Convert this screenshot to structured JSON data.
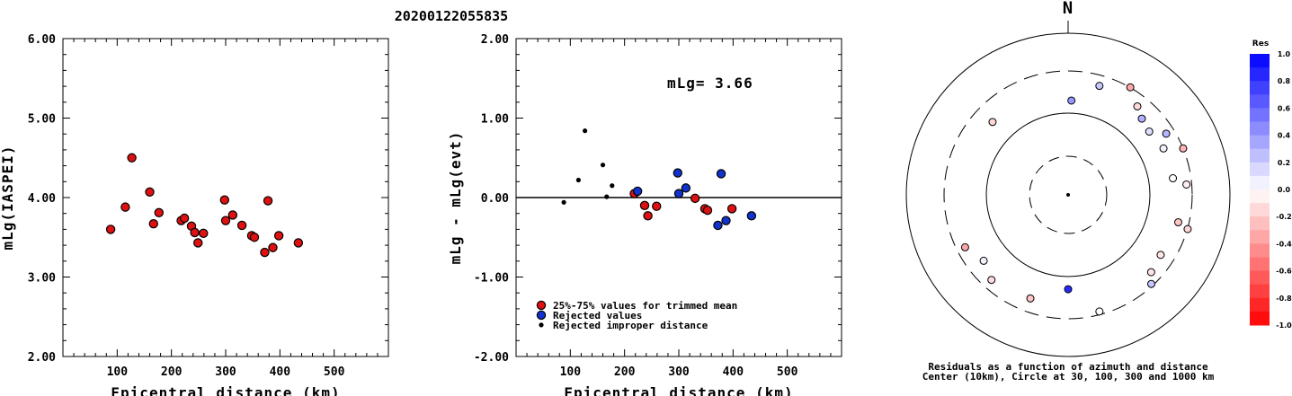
{
  "event_title": "20200122055835",
  "chart_data": [
    {
      "type": "scatter",
      "title": "",
      "xlabel": "Epicentral distance (km)",
      "ylabel": "mLg(IASPEI)",
      "xlim": [
        0,
        600
      ],
      "ylim": [
        2.0,
        6.0
      ],
      "xticks": [
        "100",
        "200",
        "300",
        "400",
        "500"
      ],
      "yticks": [
        "2.00",
        "3.00",
        "4.00",
        "5.00",
        "6.00"
      ],
      "series": [
        {
          "points": [
            [
              88,
              3.6
            ],
            [
              115,
              3.88
            ],
            [
              127,
              4.5
            ],
            [
              160,
              4.07
            ],
            [
              167,
              3.67
            ],
            [
              177,
              3.81
            ],
            [
              218,
              3.71
            ],
            [
              224,
              3.74
            ],
            [
              237,
              3.64
            ],
            [
              243,
              3.56
            ],
            [
              249,
              3.43
            ],
            [
              259,
              3.55
            ],
            [
              298,
              3.97
            ],
            [
              300,
              3.71
            ],
            [
              313,
              3.78
            ],
            [
              330,
              3.65
            ],
            [
              348,
              3.52
            ],
            [
              353,
              3.5
            ],
            [
              372,
              3.31
            ],
            [
              378,
              3.96
            ],
            [
              387,
              3.37
            ],
            [
              398,
              3.52
            ],
            [
              434,
              3.43
            ]
          ],
          "color": "#dd1111"
        }
      ]
    },
    {
      "type": "scatter",
      "title": "",
      "xlabel": "Epicentral distance (km)",
      "ylabel": "mLg - mLg(evt)",
      "xlim": [
        0,
        600
      ],
      "ylim": [
        -2.0,
        2.0
      ],
      "xticks": [
        "100",
        "200",
        "300",
        "400",
        "500"
      ],
      "yticks": [
        "-2.00",
        "-1.00",
        "0.00",
        "1.00",
        "2.00"
      ],
      "annotation": "mLg= 3.66",
      "zero_line": true,
      "series": [
        {
          "name": "25%-75% values for trimmed mean",
          "color": "#dd1111",
          "points": [
            [
              218,
              0.05
            ],
            [
              237,
              -0.1
            ],
            [
              243,
              -0.23
            ],
            [
              259,
              -0.11
            ],
            [
              330,
              -0.01
            ],
            [
              348,
              -0.14
            ],
            [
              353,
              -0.16
            ],
            [
              398,
              -0.14
            ]
          ]
        },
        {
          "name": "Rejected values",
          "color": "#1133cc",
          "points": [
            [
              224,
              0.08
            ],
            [
              298,
              0.31
            ],
            [
              300,
              0.05
            ],
            [
              313,
              0.12
            ],
            [
              372,
              -0.35
            ],
            [
              378,
              0.3
            ],
            [
              387,
              -0.29
            ],
            [
              434,
              -0.23
            ]
          ]
        },
        {
          "name": "Rejected improper distance",
          "color": "#000000",
          "points": [
            [
              88,
              -0.06
            ],
            [
              115,
              0.22
            ],
            [
              127,
              0.84
            ],
            [
              160,
              0.41
            ],
            [
              167,
              0.01
            ],
            [
              177,
              0.15
            ]
          ]
        }
      ]
    },
    {
      "type": "scatter",
      "title": "N",
      "caption": [
        "Residuals as a function of azimuth and distance",
        "Center (10km), Circle at 30, 100, 300 and 1000 km"
      ],
      "colorbar_title": "Res",
      "colorbar_ticks": [
        "1.0",
        "0.8",
        "0.6",
        "0.4",
        "0.2",
        "0.0",
        "-0.2",
        "-0.4",
        "-0.6",
        "-0.8",
        "-1.0"
      ],
      "stations": [
        {
          "az": 2,
          "dist": 160,
          "res": 0.41
        },
        {
          "az": 16,
          "dist": 250,
          "res": 0.22
        },
        {
          "az": 30,
          "dist": 305,
          "res": -0.35
        },
        {
          "az": 38,
          "dist": 245,
          "res": -0.14
        },
        {
          "az": 44,
          "dist": 215,
          "res": 0.31
        },
        {
          "az": 52,
          "dist": 200,
          "res": 0.12
        },
        {
          "az": 58,
          "dist": 260,
          "res": 0.3
        },
        {
          "az": 64,
          "dist": 215,
          "res": 0.05
        },
        {
          "az": 68,
          "dist": 300,
          "res": -0.29
        },
        {
          "az": 81,
          "dist": 215,
          "res": -0.01
        },
        {
          "az": 85,
          "dist": 275,
          "res": -0.06
        },
        {
          "az": 104,
          "dist": 250,
          "res": -0.23
        },
        {
          "az": 106,
          "dist": 305,
          "res": -0.16
        },
        {
          "az": 123,
          "dist": 235,
          "res": -0.1
        },
        {
          "az": 133,
          "dist": 250,
          "res": -0.11
        },
        {
          "az": 137,
          "dist": 290,
          "res": 0.23
        },
        {
          "az": 165,
          "dist": 285,
          "res": -0.01
        },
        {
          "az": 180,
          "dist": 160,
          "res": 0.84
        },
        {
          "az": 200,
          "dist": 235,
          "res": -0.23
        },
        {
          "az": 222,
          "dist": 255,
          "res": -0.14
        },
        {
          "az": 232,
          "dist": 220,
          "res": 0.05
        },
        {
          "az": 243,
          "dist": 260,
          "res": -0.35
        },
        {
          "az": 314,
          "dist": 210,
          "res": -0.16
        }
      ]
    }
  ]
}
